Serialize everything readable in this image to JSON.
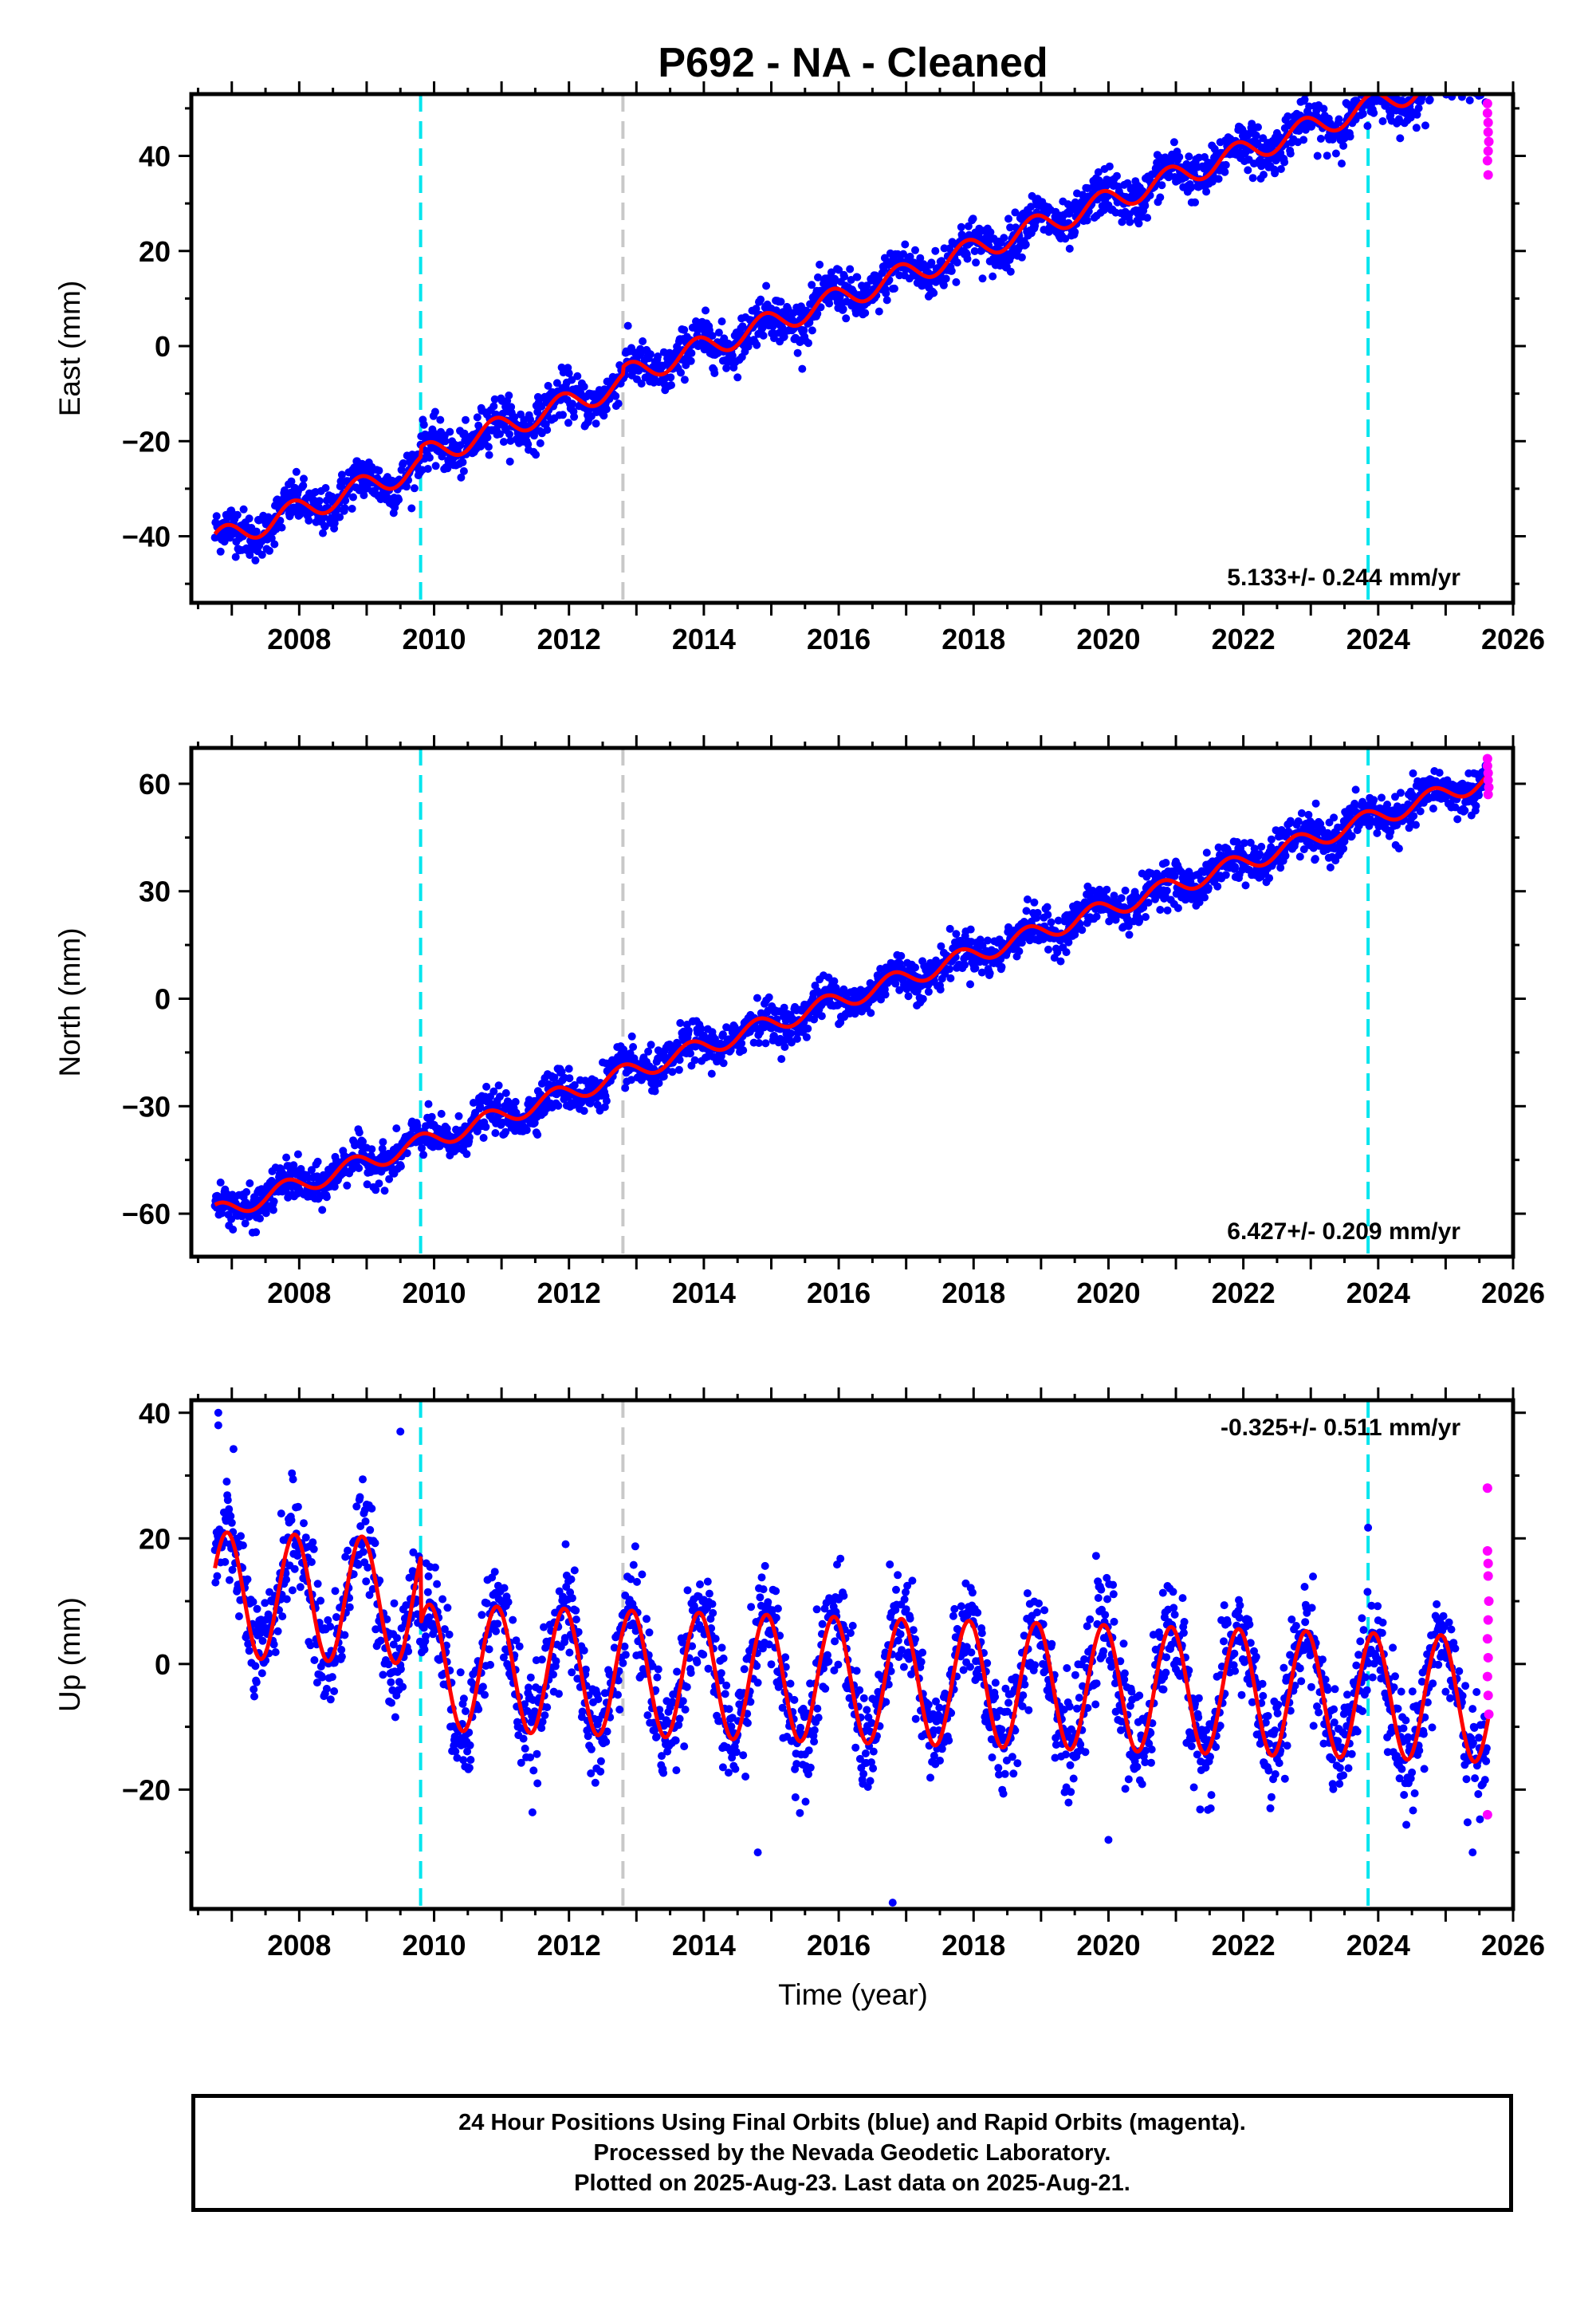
{
  "title": "P692  - NA - Cleaned",
  "xlabel": "Time (year)",
  "caption": [
    "24 Hour Positions Using Final Orbits (blue) and Rapid Orbits (magenta).",
    "Processed by the Nevada Geodetic Laboratory.",
    "Plotted on 2025-Aug-23. Last data on 2025-Aug-21."
  ],
  "colors": {
    "final_orbits": "#0000ff",
    "rapid_orbits": "#ff00ff",
    "model_fit": "#ff0000",
    "equipment_change": "#00e5ee",
    "event_marker": "#c8c8c8"
  },
  "chart_data": [
    {
      "type": "scatter",
      "ylabel": "East (mm)",
      "rate_label": "5.133+/- 0.244 mm/yr",
      "xlim": [
        2006.4,
        2026.0
      ],
      "ylim": [
        -54,
        53
      ],
      "xticks": [
        2008,
        2010,
        2012,
        2014,
        2016,
        2018,
        2020,
        2022,
        2024,
        2026
      ],
      "xtick_labels": [
        "2008",
        "2010",
        "2012",
        "2014",
        "2016",
        "2018",
        "2020",
        "2022",
        "2024",
        "2026"
      ],
      "yticks": [
        -40,
        -20,
        0,
        20,
        40
      ],
      "ytick_labels": [
        "−40",
        "−20",
        "0",
        "20",
        "40"
      ],
      "data_start": 2006.75,
      "data_end": 2025.63,
      "vlines_cyan": [
        2009.8,
        2023.85
      ],
      "vlines_gray": [
        2012.8
      ],
      "model": {
        "intercept_at_start": -41,
        "rate": 5.133,
        "amplitude": 2.5,
        "phase_year": 0.65,
        "offsets": [
          {
            "year": 2009.8,
            "value": 2.0
          },
          {
            "year": 2012.8,
            "value": 1.5
          }
        ]
      },
      "noise_scatter": 2.4,
      "series": [
        {
          "name": "Final Orbits",
          "color": "#0000ff"
        },
        {
          "name": "Rapid Orbits",
          "color": "#ff00ff",
          "values": [
            [
              2025.62,
              51
            ],
            [
              2025.62,
              49
            ],
            [
              2025.63,
              47
            ],
            [
              2025.63,
              45
            ],
            [
              2025.64,
              43
            ],
            [
              2025.63,
              41
            ],
            [
              2025.62,
              39
            ],
            [
              2025.63,
              36
            ]
          ]
        }
      ]
    },
    {
      "type": "scatter",
      "ylabel": "North (mm)",
      "rate_label": "6.427+/- 0.209 mm/yr",
      "xlim": [
        2006.4,
        2026.0
      ],
      "ylim": [
        -72,
        70
      ],
      "xticks": [
        2008,
        2010,
        2012,
        2014,
        2016,
        2018,
        2020,
        2022,
        2024,
        2026
      ],
      "xtick_labels": [
        "2008",
        "2010",
        "2012",
        "2014",
        "2016",
        "2018",
        "2020",
        "2022",
        "2024",
        "2026"
      ],
      "yticks": [
        -60,
        -30,
        0,
        30,
        60
      ],
      "ytick_labels": [
        "−60",
        "−30",
        "0",
        "30",
        "60"
      ],
      "data_start": 2006.75,
      "data_end": 2025.63,
      "vlines_cyan": [
        2009.8,
        2023.85
      ],
      "vlines_gray": [
        2012.8
      ],
      "model": {
        "intercept_at_start": -60,
        "rate": 6.427,
        "amplitude": 2.6,
        "phase_year": 0.55,
        "offsets": []
      },
      "noise_scatter": 2.8,
      "series": [
        {
          "name": "Final Orbits",
          "color": "#0000ff"
        },
        {
          "name": "Rapid Orbits",
          "color": "#ff00ff",
          "values": [
            [
              2025.62,
              67
            ],
            [
              2025.62,
              65
            ],
            [
              2025.63,
              63
            ],
            [
              2025.63,
              61
            ],
            [
              2025.64,
              59
            ],
            [
              2025.63,
              57
            ]
          ]
        }
      ]
    },
    {
      "type": "scatter",
      "ylabel": "Up (mm)",
      "rate_label": "-0.325+/- 0.511 mm/yr",
      "xlim": [
        2006.4,
        2026.0
      ],
      "ylim": [
        -39,
        42
      ],
      "xticks": [
        2008,
        2010,
        2012,
        2014,
        2016,
        2018,
        2020,
        2022,
        2024,
        2026
      ],
      "xtick_labels": [
        "2008",
        "2010",
        "2012",
        "2014",
        "2016",
        "2018",
        "2020",
        "2022",
        "2024",
        "2026"
      ],
      "yticks": [
        -20,
        0,
        20,
        40
      ],
      "ytick_labels": [
        "−20",
        "0",
        "20",
        "40"
      ],
      "data_start": 2006.75,
      "data_end": 2025.63,
      "vlines_cyan": [
        2009.8,
        2023.85
      ],
      "vlines_gray": [
        2012.8
      ],
      "model": {
        "intercept_at_start": 11,
        "rate": -0.325,
        "amplitude": 10,
        "phase_year": 0.68,
        "offsets": [
          {
            "year": 2009.8,
            "value": -10.5
          }
        ]
      },
      "noise_scatter": 4.2,
      "series": [
        {
          "name": "Final Orbits",
          "color": "#0000ff",
          "outliers": [
            [
              2006.8,
              40
            ],
            [
              2006.8,
              38
            ],
            [
              2009.5,
              37
            ],
            [
              2014.8,
              -30
            ],
            [
              2016.8,
              -38
            ],
            [
              2020.0,
              -28
            ],
            [
              2025.4,
              -30
            ]
          ]
        },
        {
          "name": "Rapid Orbits",
          "color": "#ff00ff",
          "values": [
            [
              2025.62,
              28
            ],
            [
              2025.62,
              18
            ],
            [
              2025.63,
              16
            ],
            [
              2025.63,
              14
            ],
            [
              2025.64,
              10
            ],
            [
              2025.63,
              7
            ],
            [
              2025.62,
              4
            ],
            [
              2025.63,
              1
            ],
            [
              2025.62,
              -2
            ],
            [
              2025.63,
              -5
            ],
            [
              2025.64,
              -8
            ],
            [
              2025.62,
              -24
            ]
          ]
        }
      ]
    }
  ]
}
